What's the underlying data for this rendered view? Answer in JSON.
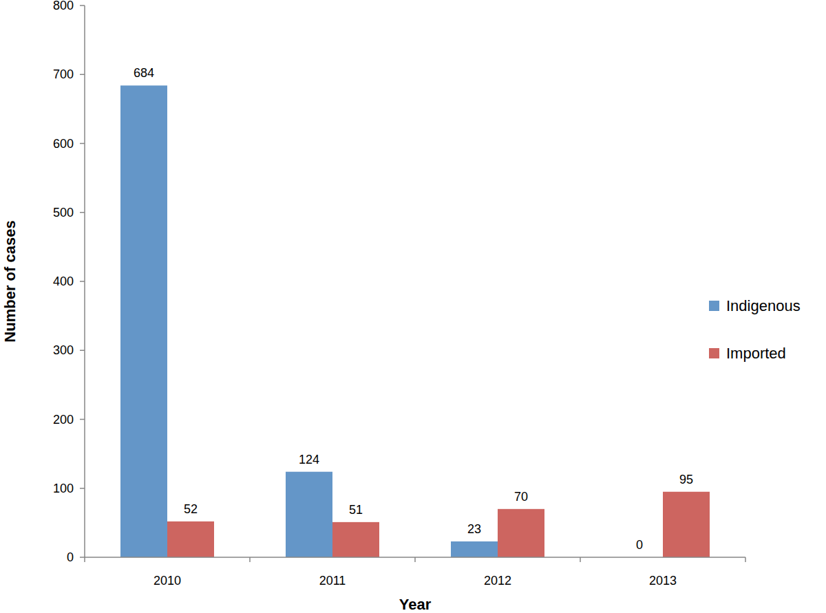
{
  "chart_data": {
    "type": "bar",
    "x_label": "Year",
    "y_label": "Number of cases",
    "categories": [
      "2010",
      "2011",
      "2012",
      "2013"
    ],
    "series": [
      {
        "name": "Indigenous",
        "color": "#6496c8",
        "values": [
          684,
          124,
          23,
          0
        ]
      },
      {
        "name": "Imported",
        "color": "#cd6560",
        "values": [
          52,
          51,
          70,
          95
        ]
      }
    ],
    "ylim": [
      0,
      800
    ],
    "yticks": [
      0,
      100,
      200,
      300,
      400,
      500,
      600,
      700,
      800
    ],
    "grid": false,
    "legend": "right",
    "data_labels": true
  }
}
